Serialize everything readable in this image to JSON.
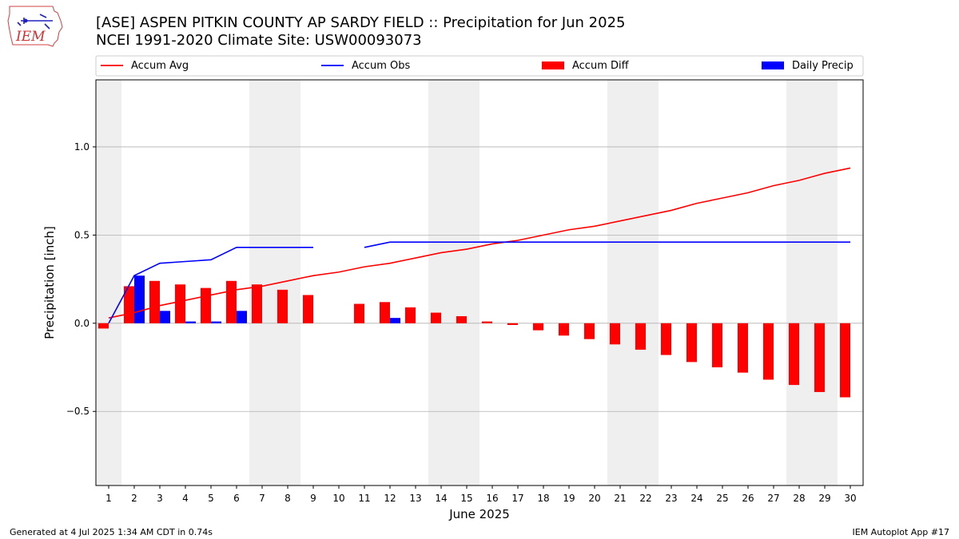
{
  "header": {
    "title_line1": "[ASE] ASPEN PITKIN COUNTY AP SARDY FIELD :: Precipitation for Jun 2025",
    "title_line2": "NCEI 1991-2020 Climate Site: USW00093073"
  },
  "logo": {
    "text": "IEM"
  },
  "footer": {
    "left": "Generated at 4 Jul 2025 1:34 AM CDT in 0.74s",
    "right": "IEM Autoplot App #17"
  },
  "chart_data": {
    "type": "bar",
    "xlabel": "June 2025",
    "ylabel": "Precipitation [inch]",
    "ylim": [
      -0.92,
      1.38
    ],
    "yticks": [
      -0.5,
      0.0,
      0.5,
      1.0
    ],
    "ytick_labels": [
      "−0.5",
      "0.0",
      "0.5",
      "1.0"
    ],
    "x": [
      1,
      2,
      3,
      4,
      5,
      6,
      7,
      8,
      9,
      10,
      11,
      12,
      13,
      14,
      15,
      16,
      17,
      18,
      19,
      20,
      21,
      22,
      23,
      24,
      25,
      26,
      27,
      28,
      29,
      30
    ],
    "weekend_shading": [
      [
        1,
        1
      ],
      [
        7,
        8
      ],
      [
        14,
        15
      ],
      [
        21,
        22
      ],
      [
        28,
        29
      ]
    ],
    "grid": true,
    "legend_placement": "top",
    "series": [
      {
        "name": "Accum Avg",
        "kind": "line",
        "color": "#ff0000",
        "values": [
          0.03,
          0.06,
          0.1,
          0.13,
          0.16,
          0.19,
          0.21,
          0.24,
          0.27,
          0.29,
          0.32,
          0.34,
          0.37,
          0.4,
          0.42,
          0.45,
          0.47,
          0.5,
          0.53,
          0.55,
          0.58,
          0.61,
          0.64,
          0.68,
          0.71,
          0.74,
          0.78,
          0.81,
          0.85,
          0.88
        ]
      },
      {
        "name": "Accum Obs",
        "kind": "line",
        "color": "#0000ff",
        "values": [
          0.0,
          0.27,
          0.34,
          0.35,
          0.36,
          0.43,
          0.43,
          0.43,
          0.43,
          null,
          0.43,
          0.46,
          0.46,
          0.46,
          0.46,
          0.46,
          0.46,
          0.46,
          0.46,
          0.46,
          0.46,
          0.46,
          0.46,
          0.46,
          0.46,
          0.46,
          0.46,
          0.46,
          0.46,
          0.46
        ]
      },
      {
        "name": "Accum Diff",
        "kind": "bar",
        "color": "#ff0000",
        "values": [
          -0.03,
          0.21,
          0.24,
          0.22,
          0.2,
          0.24,
          0.22,
          0.19,
          0.16,
          null,
          0.11,
          0.12,
          0.09,
          0.06,
          0.04,
          0.01,
          -0.01,
          -0.04,
          -0.07,
          -0.09,
          -0.12,
          -0.15,
          -0.18,
          -0.22,
          -0.25,
          -0.28,
          -0.32,
          -0.35,
          -0.39,
          -0.42
        ]
      },
      {
        "name": "Daily Precip",
        "kind": "bar",
        "color": "#0000ff",
        "values": [
          0,
          0.27,
          0.07,
          0.01,
          0.01,
          0.07,
          0,
          0,
          0,
          null,
          0,
          0.03,
          0,
          0,
          0,
          0,
          0,
          0,
          0,
          0,
          0,
          0,
          0,
          0,
          0,
          0,
          0,
          0,
          0,
          0
        ]
      }
    ]
  }
}
